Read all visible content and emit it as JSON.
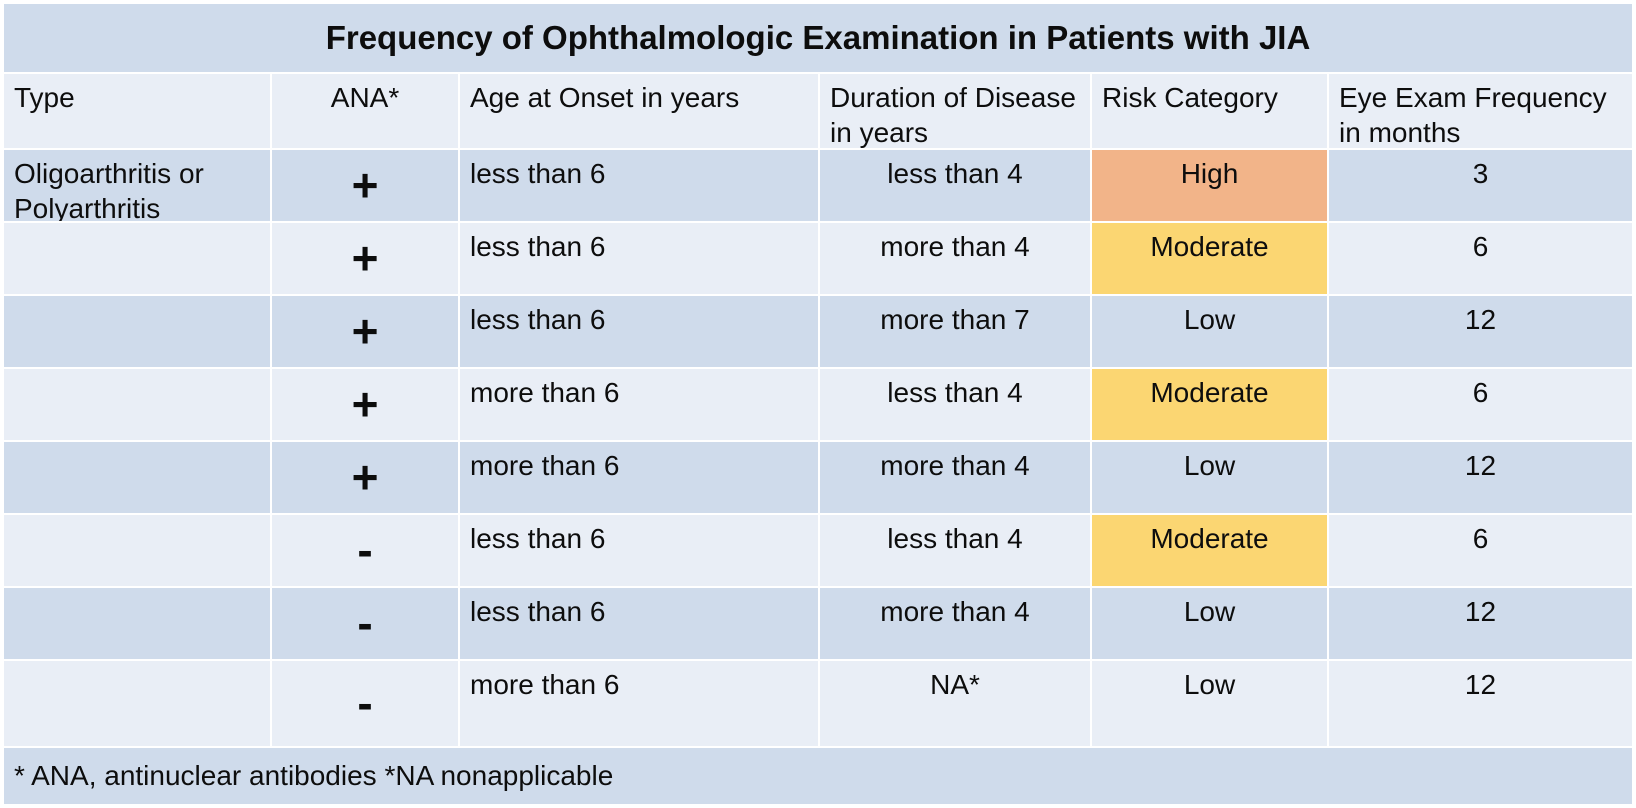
{
  "title": "Frequency of Ophthalmologic Examination in Patients with JIA",
  "columns": [
    {
      "label": "Type"
    },
    {
      "label": "ANA*"
    },
    {
      "label": "Age at Onset in years"
    },
    {
      "label": "Duration of Disease in years"
    },
    {
      "label": "Risk Category"
    },
    {
      "label": "Eye Exam Frequency in months"
    }
  ],
  "rows": [
    {
      "type": "Oligoarthritis or Polyarthritis",
      "ana": "+",
      "age": "less than 6",
      "duration": "less than 4",
      "risk": "High",
      "frequency": "3"
    },
    {
      "type": "",
      "ana": "+",
      "age": "less than 6",
      "duration": "more than 4",
      "risk": "Moderate",
      "frequency": "6"
    },
    {
      "type": "",
      "ana": "+",
      "age": "less than 6",
      "duration": "more than 7",
      "risk": "Low",
      "frequency": "12"
    },
    {
      "type": "",
      "ana": "+",
      "age": "more than 6",
      "duration": "less than 4",
      "risk": "Moderate",
      "frequency": "6"
    },
    {
      "type": "",
      "ana": "+",
      "age": "more than 6",
      "duration": "more than 4",
      "risk": "Low",
      "frequency": "12"
    },
    {
      "type": "",
      "ana": "-",
      "age": "less than 6",
      "duration": "less than 4",
      "risk": "Moderate",
      "frequency": "6"
    },
    {
      "type": "",
      "ana": "-",
      "age": "less than 6",
      "duration": "more than 4",
      "risk": "Low",
      "frequency": "12"
    },
    {
      "type": "",
      "ana": "-",
      "age": "more than 6",
      "duration": "NA*",
      "risk": "Low",
      "frequency": "12"
    }
  ],
  "footnote": "* ANA, antinuclear antibodies *NA nonapplicable",
  "colors": {
    "row_dark": "#cfdbeb",
    "row_light": "#e9eef6",
    "risk_high": "#f2b489",
    "risk_moderate": "#fbd672",
    "border": "#ffffff",
    "text": "#0d0d0d"
  }
}
